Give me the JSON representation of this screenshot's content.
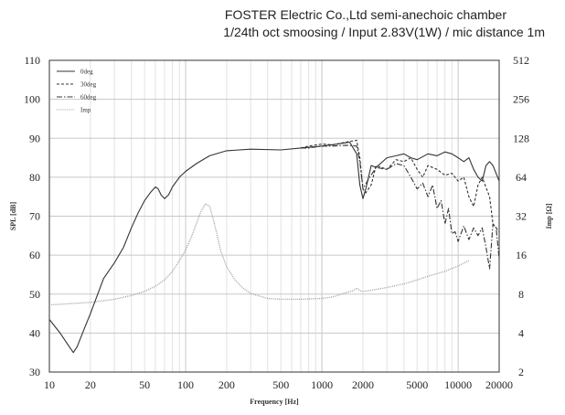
{
  "title_line1": "FOSTER Electric Co.,Ltd  semi-anechoic chamber",
  "title_line2": "1/24th oct smoosing / Input 2.83V(1W) / mic distance 1m",
  "chart_data": {
    "type": "line",
    "xlabel": "Frequency [Hz]",
    "ylabel": "SPL [dB]",
    "y2label": "Imp [Ω]",
    "xscale": "log",
    "xlim": [
      10,
      20000
    ],
    "ylim": [
      30,
      110
    ],
    "y2scale": "log2",
    "y2lim": [
      2,
      512
    ],
    "xticks": [
      10,
      20,
      50,
      100,
      200,
      500,
      1000,
      2000,
      5000,
      10000,
      20000
    ],
    "xtick_labels": [
      "10",
      "20",
      "50",
      "100",
      "200",
      "500",
      "1000",
      "2000",
      "5000",
      "10000",
      "20000"
    ],
    "yticks": [
      30,
      40,
      50,
      60,
      70,
      80,
      90,
      100,
      110
    ],
    "yticks_labels": [
      "30",
      "40",
      "50",
      "60",
      "70",
      "80",
      "90",
      "100",
      "110"
    ],
    "y2ticks": [
      2,
      4,
      8,
      16,
      32,
      64,
      128,
      256,
      512
    ],
    "y2ticks_labels": [
      "2",
      "4",
      "8",
      "16",
      "32",
      "64",
      "128",
      "256",
      "512"
    ],
    "grid": true,
    "legend_position": "top-left",
    "series": [
      {
        "name": "0deg",
        "style": "solid",
        "axis": "left",
        "x": [
          10,
          12,
          14,
          15,
          16,
          18,
          20,
          25,
          30,
          35,
          40,
          45,
          50,
          55,
          60,
          63,
          66,
          70,
          75,
          80,
          90,
          100,
          120,
          150,
          200,
          300,
          500,
          700,
          1000,
          1300,
          1600,
          1800,
          1900,
          2000,
          2100,
          2300,
          2500,
          3000,
          3500,
          4000,
          4500,
          5000,
          6000,
          7000,
          8000,
          9000,
          10000,
          11000,
          12000,
          13000,
          14000,
          15000,
          16000,
          17000,
          18000,
          20000
        ],
        "y": [
          43.5,
          40,
          36.5,
          35,
          36.5,
          41,
          45,
          54,
          58,
          62,
          67,
          71,
          74,
          76,
          77.5,
          77,
          75.5,
          74.5,
          75.5,
          77.5,
          80,
          81.5,
          83.5,
          85.5,
          86.8,
          87.2,
          87,
          87.5,
          88,
          88.5,
          89,
          86,
          78,
          74.5,
          77,
          83,
          82.5,
          85,
          85.5,
          86,
          85,
          84.5,
          86,
          85.5,
          86.5,
          86,
          85,
          84,
          85,
          82,
          80,
          79,
          83,
          84,
          83,
          79
        ]
      },
      {
        "name": "30deg",
        "style": "dashed",
        "axis": "left",
        "x": [
          700,
          800,
          1000,
          1200,
          1500,
          1800,
          1900,
          2000,
          2100,
          2300,
          2500,
          3000,
          3500,
          4000,
          4500,
          5000,
          5500,
          6000,
          7000,
          8000,
          9000,
          10000,
          11000,
          12000,
          13000,
          14000,
          15000,
          17000,
          18000,
          20000
        ],
        "y": [
          87.5,
          88,
          88.5,
          88.3,
          89,
          89.5,
          85,
          77,
          76,
          78,
          83,
          82,
          84.5,
          84,
          85,
          82,
          80,
          83,
          82,
          80.5,
          81,
          79,
          80,
          75,
          72.5,
          78,
          80,
          75,
          68,
          66
        ]
      },
      {
        "name": "60deg",
        "style": "dashdot",
        "axis": "left",
        "x": [
          700,
          800,
          1000,
          1200,
          1500,
          1800,
          1900,
          2000,
          2200,
          2500,
          3000,
          3500,
          4000,
          4500,
          5000,
          5500,
          6000,
          6500,
          7000,
          7500,
          8000,
          8500,
          9000,
          9500,
          10000,
          11000,
          12000,
          13000,
          14000,
          15000,
          16000,
          17000,
          18000,
          19000,
          20000
        ],
        "y": [
          87.5,
          87.5,
          88,
          88,
          88.2,
          88,
          84,
          77,
          79.5,
          82.5,
          82,
          83.5,
          83,
          80,
          77,
          78.5,
          75,
          78,
          72,
          74,
          68,
          72,
          65.5,
          66,
          63.5,
          67.5,
          64,
          67,
          65,
          67,
          62,
          56.5,
          68,
          67,
          59
        ]
      },
      {
        "name": "Imp",
        "style": "dotted",
        "axis": "right",
        "x": [
          10,
          20,
          30,
          40,
          50,
          60,
          70,
          80,
          90,
          100,
          110,
          120,
          130,
          140,
          150,
          160,
          170,
          180,
          200,
          230,
          260,
          300,
          400,
          500,
          700,
          1000,
          1200,
          1500,
          1700,
          1800,
          1900,
          2000,
          2200,
          2500,
          3000,
          4000,
          5000,
          6000,
          8000,
          10000,
          12000
        ],
        "y": [
          6.6,
          6.9,
          7.3,
          7.8,
          8.4,
          9.2,
          10.3,
          12,
          14.5,
          17.5,
          22,
          28,
          35,
          40,
          38,
          30,
          23,
          17.5,
          13,
          10.3,
          9,
          8.1,
          7.4,
          7.3,
          7.3,
          7.4,
          7.6,
          8.2,
          8.5,
          8.9,
          8.5,
          8.4,
          8.5,
          8.7,
          9.0,
          9.6,
          10.3,
          11,
          12,
          13.2,
          14.5
        ]
      }
    ]
  }
}
